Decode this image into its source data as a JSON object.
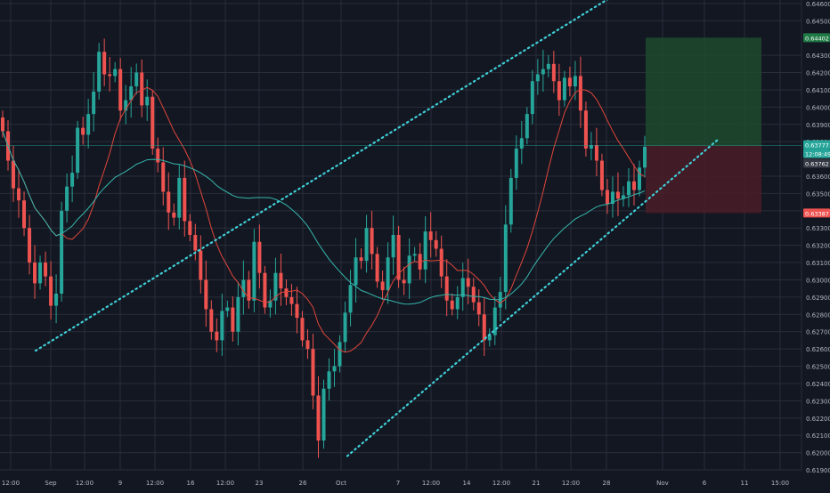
{
  "colors": {
    "background": "#131722",
    "grid": "#2a2e39",
    "up": "#26a69a",
    "down": "#ef5350",
    "ma_fast": "#e0463b",
    "ma_slow": "#35b7ad",
    "channel": "#3fd0d8",
    "axis_text": "#b2b5be",
    "profit_zone": "#1e4a2e",
    "stop_zone": "#4a1c27"
  },
  "chart_data": {
    "type": "candlestick",
    "title": "",
    "xlabel": "",
    "ylabel": "",
    "ylim": [
      0.619,
      0.6462
    ],
    "y_ticks": [
      "0.64600",
      "0.64500",
      "0.64300",
      "0.64200",
      "0.64100",
      "0.64000",
      "0.63900",
      "0.63800",
      "0.63600",
      "0.63500",
      "0.63400",
      "0.63300",
      "0.63200",
      "0.63100",
      "0.63000",
      "0.62900",
      "0.62800",
      "0.62700",
      "0.62600",
      "0.62500",
      "0.62400",
      "0.62300",
      "0.62200",
      "0.62100",
      "0.62000",
      "0.61900"
    ],
    "x_ticks": [
      "12:00",
      "Sep",
      "12:00",
      "9",
      "12:00",
      "16",
      "12:00",
      "23",
      "26",
      "Oct",
      "7",
      "12:00",
      "14",
      "12:00",
      "21",
      "12:00",
      "28",
      "Nov",
      "6",
      "11",
      "15:00"
    ],
    "price_labels": [
      {
        "value": 0.64402,
        "text": "0.64402",
        "kind": "target"
      },
      {
        "value": 0.63777,
        "text": "0.63777",
        "kind": "current"
      },
      {
        "value": 0.6373,
        "text": "12:08:49",
        "kind": "countdown"
      },
      {
        "value": 0.63762,
        "text": "0.63762",
        "kind": "reference"
      },
      {
        "value": 0.63387,
        "text": "0.63387",
        "kind": "stop"
      }
    ],
    "position": {
      "entry": 0.63777,
      "target": 0.64402,
      "stop": 0.63387
    },
    "channel": {
      "upper": {
        "x": [
          "Sep",
          "Nov"
        ],
        "y": [
          0.6259,
          0.6468
        ]
      },
      "lower": {
        "x": [
          "Oct",
          "Nov"
        ],
        "y": [
          0.6198,
          0.6382
        ]
      }
    },
    "series": [
      {
        "name": "",
        "values": [
          0.6386,
          0.6369,
          0.6353,
          0.6346,
          0.633,
          0.631,
          0.6298,
          0.631,
          0.6302,
          0.6285,
          0.6292,
          0.634,
          0.6354,
          0.6362,
          0.6388,
          0.6384,
          0.6396,
          0.6409,
          0.6432,
          0.6419,
          0.6418,
          0.6422,
          0.6398,
          0.6404,
          0.6412,
          0.642,
          0.6401,
          0.6406,
          0.6376,
          0.6368,
          0.6351,
          0.6339,
          0.6336,
          0.6359,
          0.6334,
          0.6326,
          0.6317,
          0.63,
          0.6283,
          0.627,
          0.6265,
          0.6282,
          0.6284,
          0.627,
          0.629,
          0.63,
          0.6288,
          0.6322,
          0.6304,
          0.6284,
          0.6288,
          0.6304,
          0.6295,
          0.629,
          0.6286,
          0.6278,
          0.6265,
          0.626,
          0.6233,
          0.6207,
          0.6237,
          0.6247,
          0.625,
          0.6264,
          0.6281,
          0.6297,
          0.6313,
          0.6311,
          0.633,
          0.6315,
          0.6299,
          0.6294,
          0.6313,
          0.6326,
          0.63,
          0.6298,
          0.6314,
          0.6315,
          0.6306,
          0.6328,
          0.6323,
          0.6318,
          0.6302,
          0.6288,
          0.6283,
          0.629,
          0.6301,
          0.6296,
          0.6287,
          0.628,
          0.6265,
          0.6268,
          0.6284,
          0.6293,
          0.6332,
          0.6359,
          0.6376,
          0.6382,
          0.6396,
          0.6415,
          0.6419,
          0.6422,
          0.6425,
          0.6415,
          0.6404,
          0.6417,
          0.6412,
          0.6418,
          0.6398,
          0.6376,
          0.6378,
          0.6369,
          0.6352,
          0.6344,
          0.6351,
          0.6347,
          0.6349,
          0.6357,
          0.6352,
          0.6365,
          0.6377
        ]
      }
    ]
  }
}
